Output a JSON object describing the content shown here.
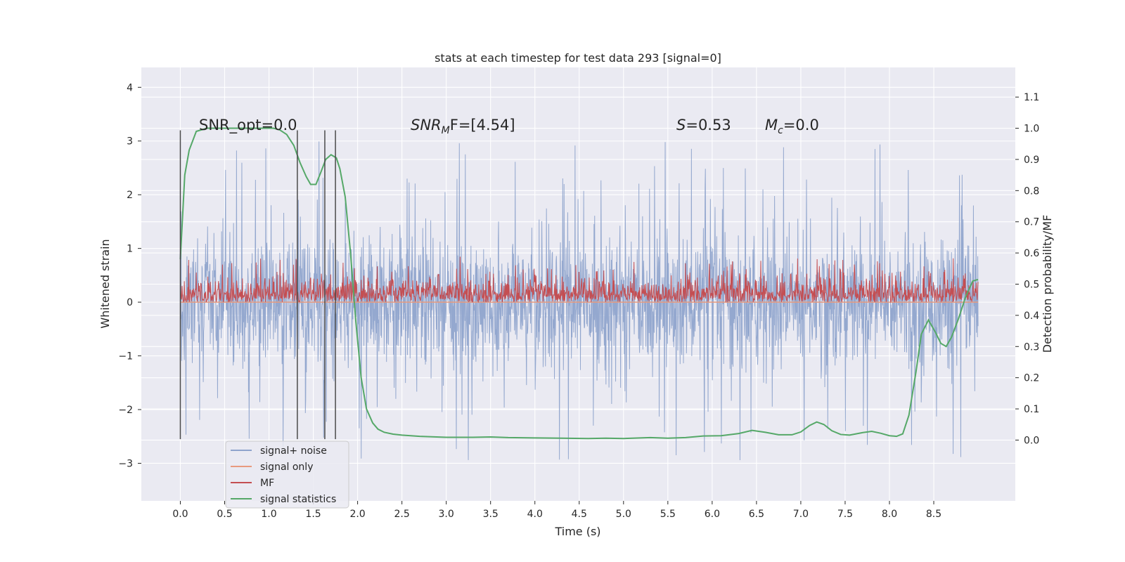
{
  "chart_data": {
    "type": "line",
    "title": "stats at each timestep for test data 293 [signal=0]",
    "xlabel": "Time (s)",
    "ylabel": "Whitened strain",
    "y2label": "Detection probability/MF",
    "xlim": [
      -0.44,
      9.42
    ],
    "ylim": [
      -3.7,
      4.37
    ],
    "y2lim": [
      -0.195,
      1.195
    ],
    "x_ticks": [
      "0.0",
      "0.5",
      "1.0",
      "1.5",
      "2.0",
      "2.5",
      "3.0",
      "3.5",
      "4.0",
      "4.5",
      "5.0",
      "5.5",
      "6.0",
      "6.5",
      "7.0",
      "7.5",
      "8.0",
      "8.5"
    ],
    "y_ticks": [
      "−3",
      "−2",
      "−1",
      "0",
      "1",
      "2",
      "3",
      "4"
    ],
    "y2_ticks": [
      "0.0",
      "0.1",
      "0.2",
      "0.3",
      "0.4",
      "0.5",
      "0.6",
      "0.7",
      "0.8",
      "0.9",
      "1.0",
      "1.1"
    ],
    "grid": true,
    "legend_position": "lower-left",
    "annotations": {
      "snr_opt": "SNR_opt=0.0",
      "snr_mf_main": "SNR",
      "snr_mf_sub": "M",
      "snr_mf_rest": "F=[4.54]",
      "s_main": "S",
      "s_rest": "=0.53",
      "mc_main": "M",
      "mc_sub": "c",
      "mc_rest": "=0.0"
    },
    "vertical_markers_x": [
      0.0,
      1.32,
      1.63,
      1.75
    ],
    "series": [
      {
        "name": "signal+ noise",
        "color": "#8fa4cc",
        "axis": "left",
        "t_range": [
          0.0,
          9.0
        ],
        "y_envelope": {
          "typical": [
            -2.1,
            1.9
          ],
          "spikes": [
            -3.3,
            4.0
          ]
        }
      },
      {
        "name": "signal only",
        "color": "#e89a7e",
        "axis": "left",
        "t_range": [
          0.0,
          9.0
        ],
        "constant": 0.0
      },
      {
        "name": "MF",
        "color": "#c44e52",
        "axis": "left",
        "t_range": [
          0.0,
          9.0
        ],
        "y_envelope": {
          "base": 0.0,
          "typical_top": 0.5,
          "spike_top": 0.85
        }
      },
      {
        "name": "signal statistics",
        "color": "#55a868",
        "axis": "right",
        "points": [
          [
            0.0,
            0.58
          ],
          [
            0.05,
            0.85
          ],
          [
            0.1,
            0.93
          ],
          [
            0.18,
            0.99
          ],
          [
            0.3,
            1.0
          ],
          [
            0.5,
            1.0
          ],
          [
            0.7,
            1.0
          ],
          [
            0.9,
            1.0
          ],
          [
            1.05,
            1.0
          ],
          [
            1.12,
            0.995
          ],
          [
            1.2,
            0.98
          ],
          [
            1.28,
            0.945
          ],
          [
            1.35,
            0.89
          ],
          [
            1.42,
            0.845
          ],
          [
            1.47,
            0.82
          ],
          [
            1.53,
            0.82
          ],
          [
            1.58,
            0.855
          ],
          [
            1.64,
            0.9
          ],
          [
            1.7,
            0.915
          ],
          [
            1.76,
            0.905
          ],
          [
            1.8,
            0.87
          ],
          [
            1.86,
            0.78
          ],
          [
            1.92,
            0.6
          ],
          [
            1.98,
            0.38
          ],
          [
            2.04,
            0.2
          ],
          [
            2.1,
            0.1
          ],
          [
            2.17,
            0.055
          ],
          [
            2.23,
            0.035
          ],
          [
            2.3,
            0.025
          ],
          [
            2.4,
            0.019
          ],
          [
            2.5,
            0.016
          ],
          [
            2.7,
            0.012
          ],
          [
            3.0,
            0.009
          ],
          [
            3.3,
            0.009
          ],
          [
            3.5,
            0.01
          ],
          [
            3.7,
            0.008
          ],
          [
            4.0,
            0.007
          ],
          [
            4.3,
            0.006
          ],
          [
            4.6,
            0.005
          ],
          [
            4.8,
            0.006
          ],
          [
            5.0,
            0.005
          ],
          [
            5.3,
            0.008
          ],
          [
            5.5,
            0.006
          ],
          [
            5.7,
            0.008
          ],
          [
            5.9,
            0.013
          ],
          [
            6.1,
            0.014
          ],
          [
            6.3,
            0.021
          ],
          [
            6.45,
            0.031
          ],
          [
            6.6,
            0.025
          ],
          [
            6.75,
            0.017
          ],
          [
            6.9,
            0.017
          ],
          [
            7.0,
            0.026
          ],
          [
            7.1,
            0.047
          ],
          [
            7.18,
            0.058
          ],
          [
            7.26,
            0.05
          ],
          [
            7.35,
            0.03
          ],
          [
            7.45,
            0.018
          ],
          [
            7.55,
            0.016
          ],
          [
            7.7,
            0.024
          ],
          [
            7.8,
            0.028
          ],
          [
            7.9,
            0.022
          ],
          [
            8.0,
            0.014
          ],
          [
            8.08,
            0.012
          ],
          [
            8.15,
            0.02
          ],
          [
            8.22,
            0.08
          ],
          [
            8.3,
            0.22
          ],
          [
            8.36,
            0.34
          ],
          [
            8.44,
            0.385
          ],
          [
            8.52,
            0.345
          ],
          [
            8.58,
            0.31
          ],
          [
            8.64,
            0.3
          ],
          [
            8.7,
            0.33
          ],
          [
            8.78,
            0.39
          ],
          [
            8.86,
            0.46
          ],
          [
            8.94,
            0.51
          ],
          [
            9.0,
            0.515
          ]
        ]
      }
    ]
  }
}
